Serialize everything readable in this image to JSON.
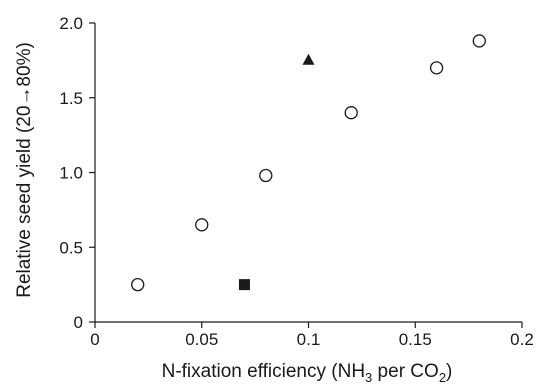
{
  "chart_data": {
    "type": "scatter",
    "title": "",
    "xlabel": {
      "prefix": "N-fixation efficiency (NH",
      "sub1": "3",
      "middle": " per CO",
      "sub2": "2",
      "suffix": ")"
    },
    "ylabel": "Relative seed yield (20→80%)",
    "xlim": [
      0,
      0.2
    ],
    "ylim": [
      0,
      2.0
    ],
    "x_ticks": [
      0,
      0.05,
      0.1,
      0.15,
      0.2
    ],
    "x_tick_labels": [
      "0",
      "0.05",
      "0.1",
      "0.15",
      "0.2"
    ],
    "y_ticks": [
      0,
      0.5,
      1.0,
      1.5,
      2.0
    ],
    "y_tick_labels": [
      "0",
      "0.5",
      "1.0",
      "1.5",
      "2.0"
    ],
    "grid": false,
    "series": [
      {
        "marker": "open-circle",
        "color": "#1a1a1a",
        "points": [
          {
            "x": 0.02,
            "y": 0.25
          },
          {
            "x": 0.05,
            "y": 0.65
          },
          {
            "x": 0.08,
            "y": 0.98
          },
          {
            "x": 0.12,
            "y": 1.4
          },
          {
            "x": 0.16,
            "y": 1.7
          },
          {
            "x": 0.18,
            "y": 1.88
          }
        ]
      },
      {
        "marker": "filled-triangle",
        "color": "#1a1a1a",
        "points": [
          {
            "x": 0.1,
            "y": 1.75
          }
        ]
      },
      {
        "marker": "filled-square",
        "color": "#1a1a1a",
        "points": [
          {
            "x": 0.07,
            "y": 0.25
          }
        ]
      }
    ]
  }
}
